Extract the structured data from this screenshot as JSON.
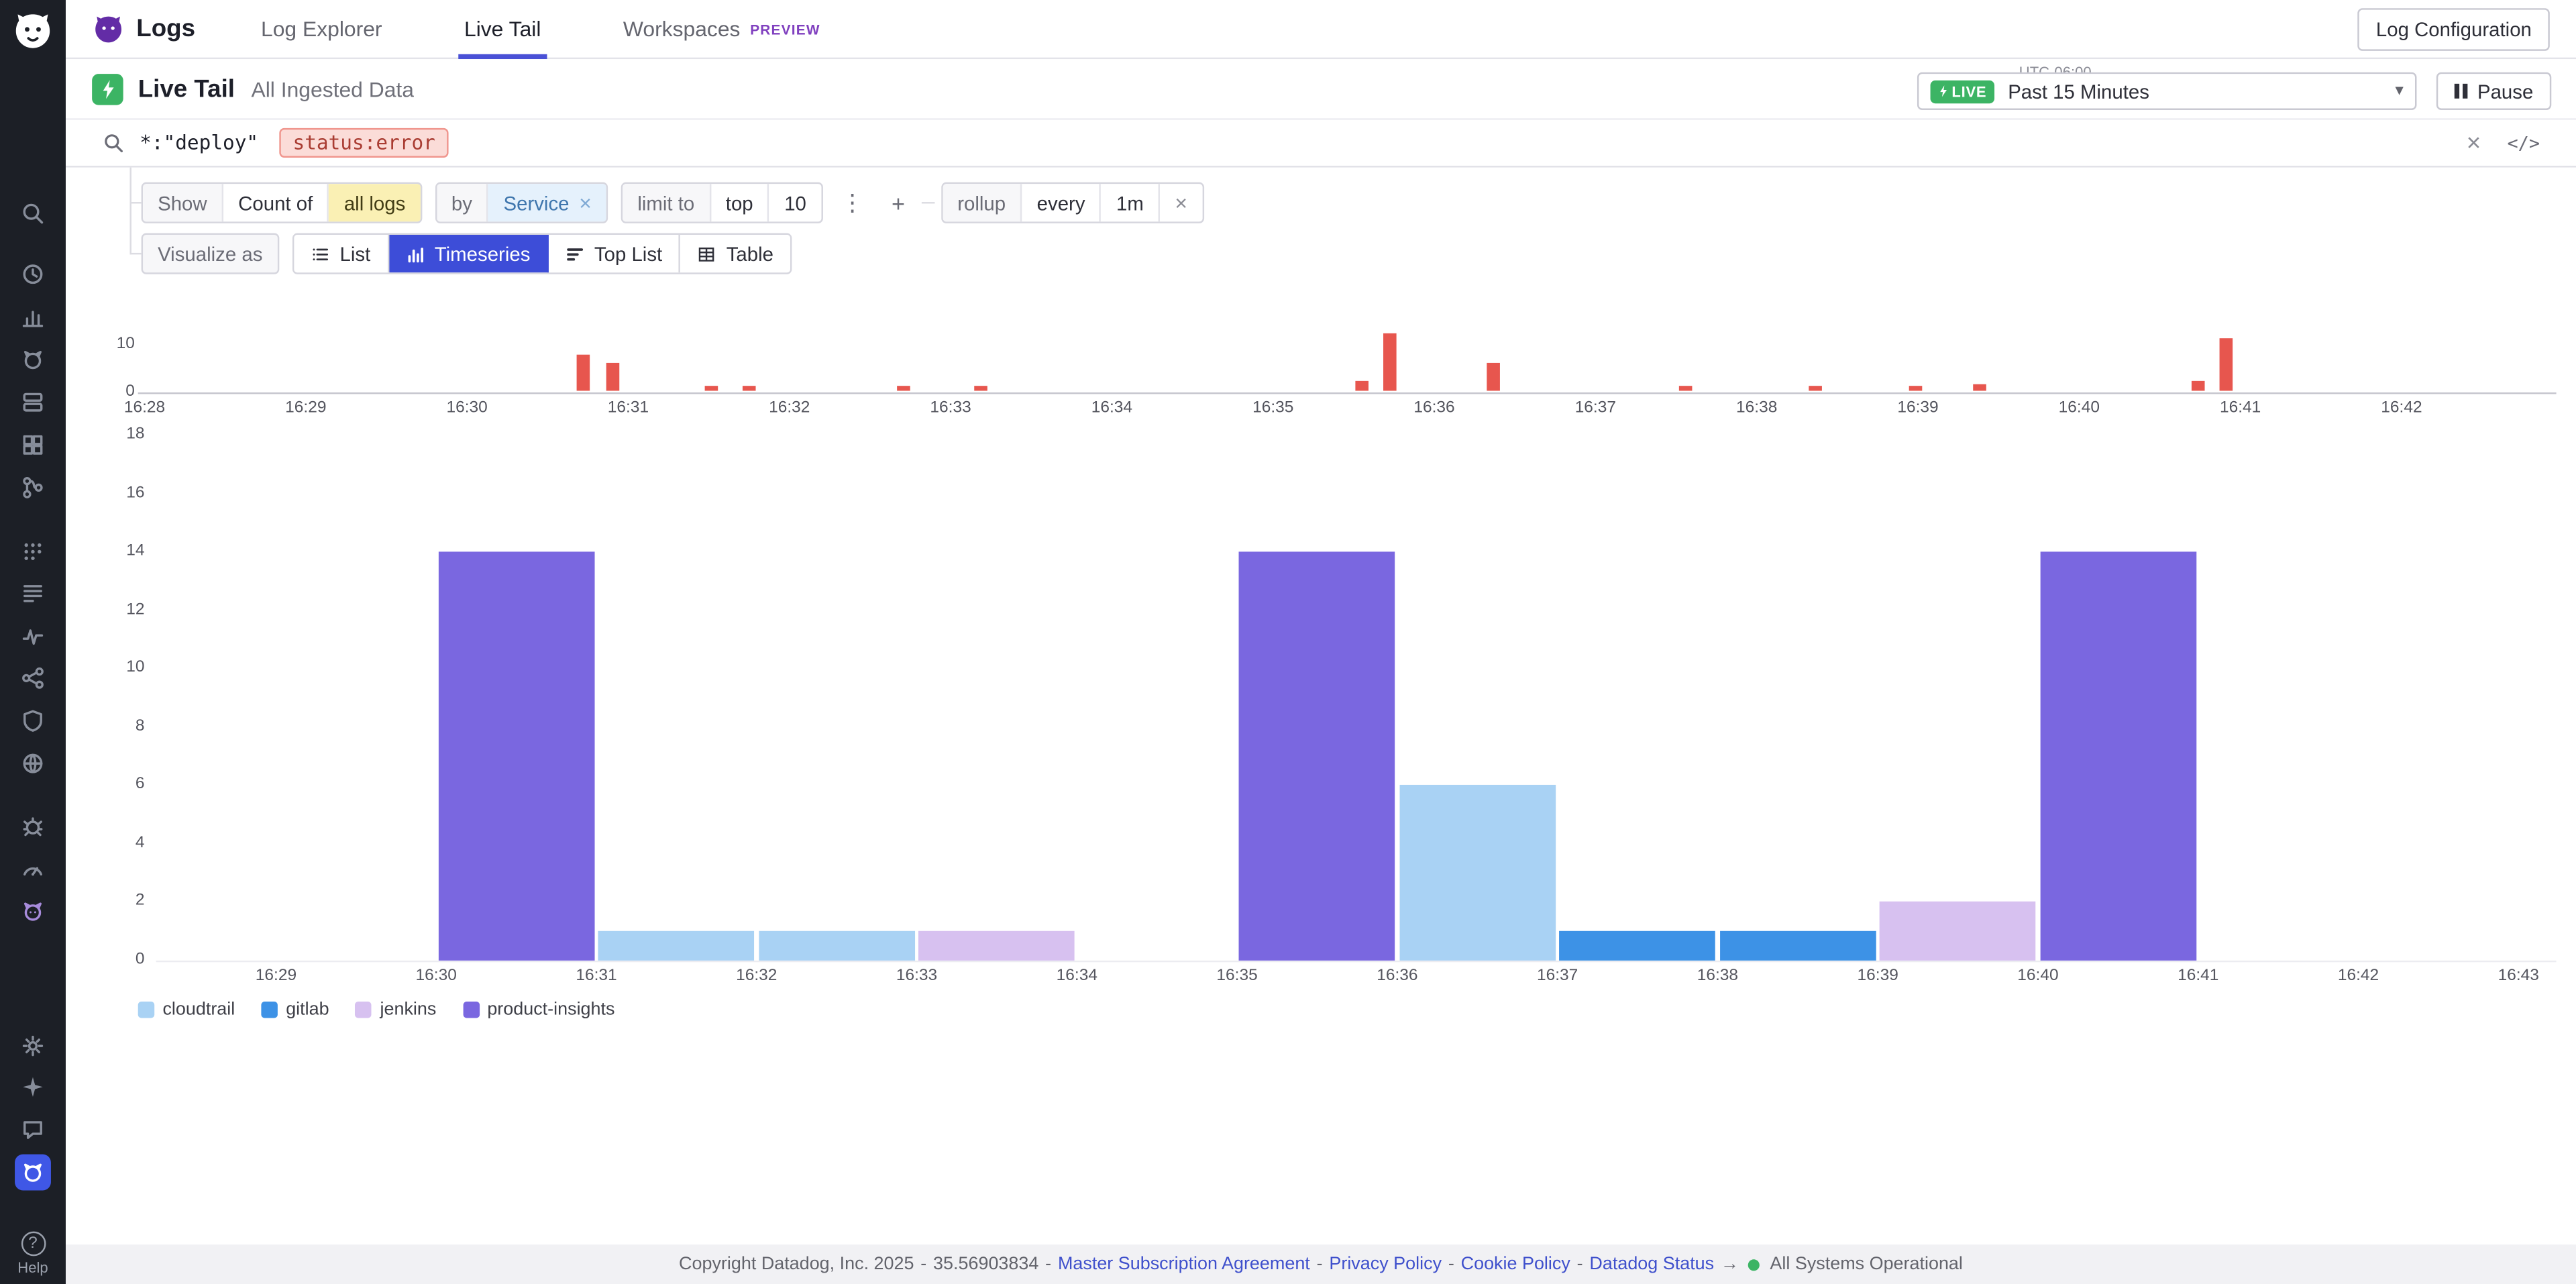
{
  "sidebar": {
    "help_label": "Help",
    "icons": [
      {
        "name": "search"
      },
      {
        "name": "history"
      },
      {
        "name": "metrics"
      },
      {
        "name": "watchdog"
      },
      {
        "name": "infrastructure"
      },
      {
        "name": "containers"
      },
      {
        "name": "ci-pipelines"
      },
      {
        "name": "processes"
      },
      {
        "name": "logs"
      },
      {
        "name": "apm"
      },
      {
        "name": "service-map"
      },
      {
        "name": "security"
      },
      {
        "name": "synthetics"
      },
      {
        "name": "error-tracking"
      },
      {
        "name": "profiling"
      },
      {
        "name": "llm-observability",
        "color": "#a78bdb"
      },
      {
        "name": "integrations"
      },
      {
        "name": "bits-ai"
      },
      {
        "name": "feedback"
      },
      {
        "name": "current-product",
        "active": true
      }
    ]
  },
  "navbar": {
    "product_title": "Logs",
    "tabs": [
      {
        "label": "Log Explorer",
        "active": false
      },
      {
        "label": "Live Tail",
        "active": true
      },
      {
        "label": "Workspaces",
        "active": false,
        "badge": "PREVIEW"
      }
    ],
    "log_configuration_label": "Log Configuration"
  },
  "header": {
    "title": "Live Tail",
    "subtitle": "All Ingested Data",
    "timezone": "UTC-06:00",
    "live_badge": "LIVE",
    "time_range": "Past 15 Minutes",
    "pause_label": "Pause"
  },
  "search": {
    "free_text": "*:\"deploy\"",
    "token": "status:error"
  },
  "query": {
    "show_label": "Show",
    "count_of": "Count of",
    "measure": "all logs",
    "by_label": "by",
    "group_by": "Service",
    "limit_label": "limit to",
    "limit_order": "top",
    "limit_value": "10",
    "rollup_label": "rollup",
    "rollup_every_label": "every",
    "rollup_interval": "1m"
  },
  "visualize": {
    "label": "Visualize as",
    "options": [
      {
        "label": "List",
        "active": false
      },
      {
        "label": "Timeseries",
        "active": true
      },
      {
        "label": "Top List",
        "active": false
      },
      {
        "label": "Table",
        "active": false
      }
    ]
  },
  "chart_data": [
    {
      "id": "live-tail-ingest-rate",
      "type": "bar",
      "bar_color": "#e7564e",
      "ylim": [
        0,
        12
      ],
      "yticks": [
        10,
        0
      ],
      "xticks": [
        "16:28",
        "16:29",
        "16:30",
        "16:31",
        "16:32",
        "16:33",
        "16:34",
        "16:35",
        "16:36",
        "16:37",
        "16:38",
        "16:39",
        "16:40",
        "16:41",
        "16:42"
      ],
      "x_unit": "minutes after 16:00",
      "points": [
        {
          "x": 30.72,
          "y": 7.5
        },
        {
          "x": 30.9,
          "y": 6
        },
        {
          "x": 31.52,
          "y": 1
        },
        {
          "x": 31.75,
          "y": 1
        },
        {
          "x": 32.71,
          "y": 1
        },
        {
          "x": 33.19,
          "y": 1
        },
        {
          "x": 35.55,
          "y": 2
        },
        {
          "x": 35.72,
          "y": 12
        },
        {
          "x": 36.37,
          "y": 6
        },
        {
          "x": 37.56,
          "y": 1
        },
        {
          "x": 38.36,
          "y": 1
        },
        {
          "x": 38.99,
          "y": 1
        },
        {
          "x": 39.38,
          "y": 1.5
        },
        {
          "x": 40.74,
          "y": 2
        },
        {
          "x": 40.91,
          "y": 11
        }
      ]
    },
    {
      "id": "log-count-by-service",
      "type": "bar",
      "stacked": false,
      "ylim": [
        0,
        18
      ],
      "yticks": [
        0,
        2,
        4,
        6,
        8,
        10,
        12,
        14,
        16,
        18
      ],
      "xticks": [
        "16:29",
        "16:30",
        "16:31",
        "16:32",
        "16:33",
        "16:34",
        "16:35",
        "16:36",
        "16:37",
        "16:38",
        "16:39",
        "16:40",
        "16:41",
        "16:42",
        "16:43"
      ],
      "legend_position": "bottom-left",
      "series": [
        {
          "name": "cloudtrail",
          "color": "#a9d2f4",
          "points": [
            {
              "x": "16:31",
              "y": 1
            },
            {
              "x": "16:32",
              "y": 1
            },
            {
              "x": "16:36",
              "y": 6
            }
          ]
        },
        {
          "name": "gitlab",
          "color": "#3d92e6",
          "points": [
            {
              "x": "16:37",
              "y": 1
            },
            {
              "x": "16:38",
              "y": 1
            }
          ]
        },
        {
          "name": "jenkins",
          "color": "#d7c1f0",
          "points": [
            {
              "x": "16:33",
              "y": 1
            },
            {
              "x": "16:39",
              "y": 2
            }
          ]
        },
        {
          "name": "product-insights",
          "color": "#7a67e0",
          "points": [
            {
              "x": "16:30",
              "y": 14
            },
            {
              "x": "16:35",
              "y": 14
            },
            {
              "x": "16:40",
              "y": 14
            }
          ]
        }
      ]
    }
  ],
  "footer": {
    "items": [
      {
        "type": "text",
        "text": "Copyright Datadog, Inc. 2025"
      },
      {
        "type": "text",
        "text": "-"
      },
      {
        "type": "text",
        "text": "35.56903834"
      },
      {
        "type": "text",
        "text": "-"
      },
      {
        "type": "link",
        "text": "Master Subscription Agreement"
      },
      {
        "type": "text",
        "text": "-"
      },
      {
        "type": "link",
        "text": "Privacy Policy"
      },
      {
        "type": "text",
        "text": "-"
      },
      {
        "type": "link",
        "text": "Cookie Policy"
      },
      {
        "type": "text",
        "text": "-"
      },
      {
        "type": "link",
        "text": "Datadog Status"
      },
      {
        "type": "text",
        "text": "→"
      },
      {
        "type": "status",
        "text": "All Systems Operational"
      }
    ]
  },
  "colors": {
    "accent_blue": "#4a51d6",
    "timeseries_active_blue": "#3d4dd8",
    "live_green": "#3cb464",
    "error_red": "#e7564e",
    "sidebar_bg": "#1c1f26",
    "preview_purple": "#8040bf",
    "token_pink_bg": "#fbdcd8",
    "highlight_yellow": "#faf0b4"
  }
}
